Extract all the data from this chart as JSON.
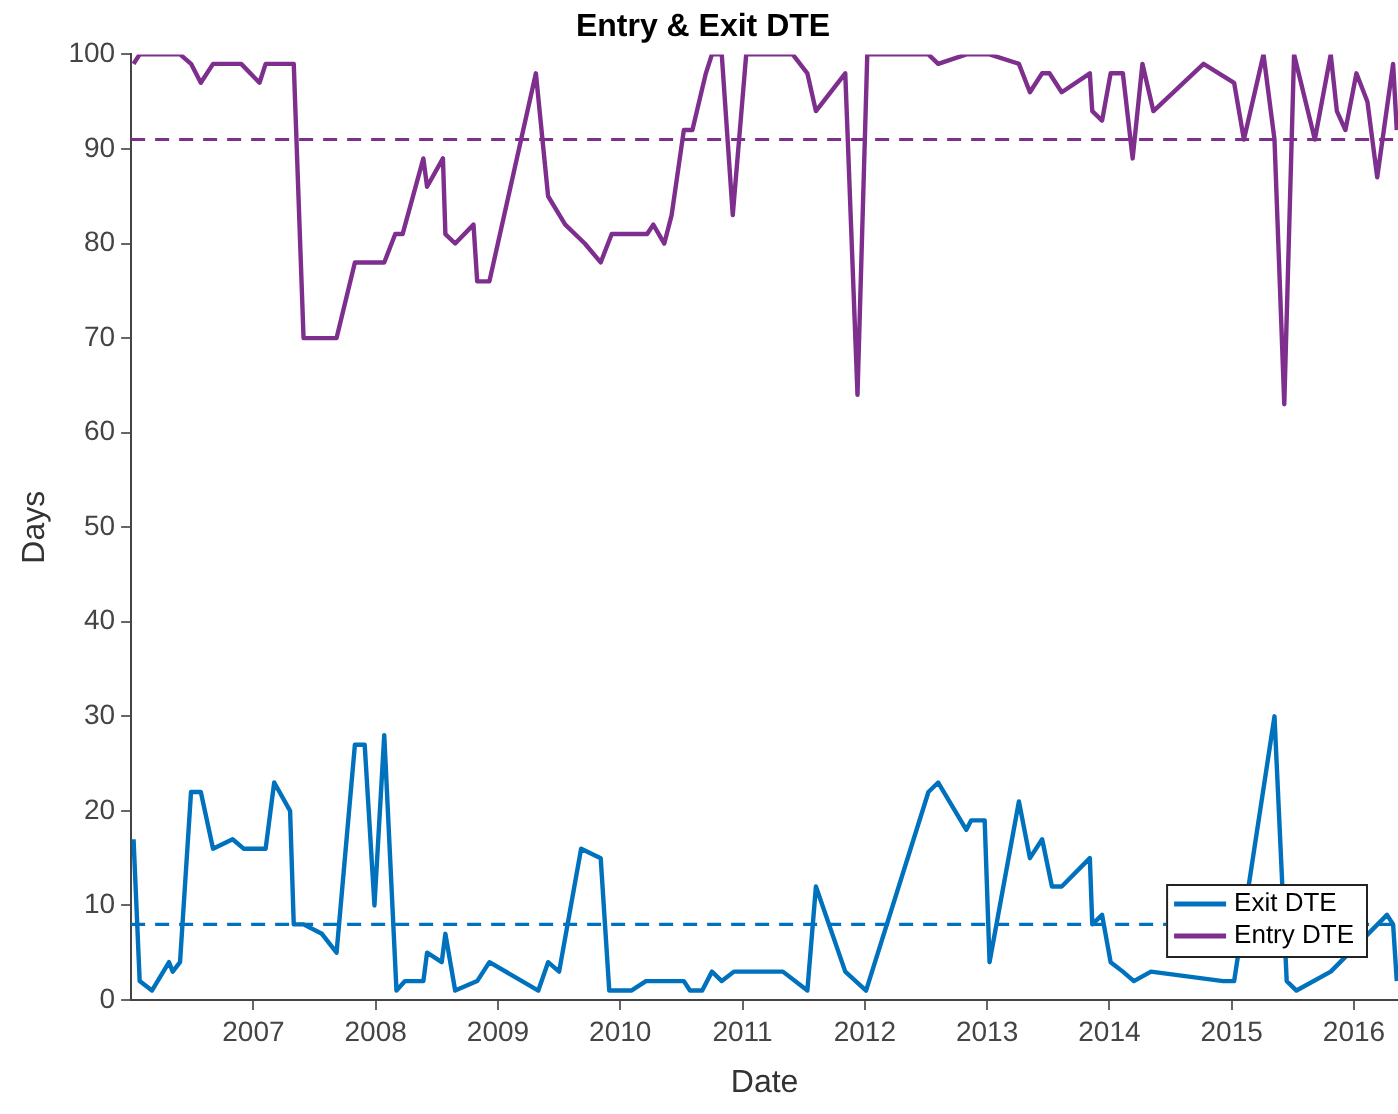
{
  "chart_data": {
    "type": "line",
    "title": "Entry & Exit DTE",
    "xlabel": "Date",
    "ylabel": "Days",
    "xlim": [
      2006.0,
      2016.36
    ],
    "xticks": [
      2007,
      2008,
      2009,
      2010,
      2011,
      2012,
      2013,
      2014,
      2015,
      2016
    ],
    "ylim": [
      0,
      100
    ],
    "yticks": [
      0,
      10,
      20,
      30,
      40,
      50,
      60,
      70,
      80,
      90,
      100
    ],
    "grid": false,
    "legend": "bottom right",
    "marker": "none",
    "line_style": "solid",
    "series": [
      {
        "name": "Exit DTE",
        "color": "#0072bd",
        "x": [
          2006.02,
          2006.07,
          2006.17,
          2006.31,
          2006.34,
          2006.4,
          2006.49,
          2006.57,
          2006.67,
          2006.83,
          2006.92,
          2007.1,
          2007.17,
          2007.3,
          2007.33,
          2007.41,
          2007.56,
          2007.68,
          2007.83,
          2007.91,
          2007.99,
          2008.07,
          2008.17,
          2008.24,
          2008.39,
          2008.42,
          2008.54,
          2008.57,
          2008.65,
          2008.83,
          2008.93,
          2009.33,
          2009.41,
          2009.5,
          2009.68,
          2009.84,
          2009.91,
          2010.09,
          2010.21,
          2010.52,
          2010.57,
          2010.67,
          2010.75,
          2010.83,
          2010.93,
          2011.25,
          2011.33,
          2011.53,
          2011.6,
          2011.84,
          2012.01,
          2012.52,
          2012.6,
          2012.83,
          2012.87,
          2012.98,
          2013.02,
          2013.26,
          2013.35,
          2013.45,
          2013.53,
          2013.61,
          2013.84,
          2013.86,
          2013.94,
          2014.01,
          2014.11,
          2014.2,
          2014.34,
          2014.93,
          2015.02,
          2015.35,
          2015.45,
          2015.53,
          2015.81,
          2016.27,
          2016.32,
          2016.35
        ],
        "values": [
          17,
          2,
          1,
          4,
          3,
          4,
          22,
          22,
          16,
          17,
          16,
          16,
          23,
          20,
          8,
          8,
          7,
          5,
          27,
          27,
          10,
          28,
          1,
          2,
          2,
          5,
          4,
          7,
          1,
          2,
          4,
          1,
          4,
          3,
          16,
          15,
          1,
          1,
          2,
          2,
          1,
          1,
          3,
          2,
          3,
          3,
          3,
          1,
          12,
          3,
          1,
          22,
          23,
          18,
          19,
          19,
          4,
          21,
          15,
          17,
          12,
          12,
          15,
          8,
          9,
          4,
          3,
          2,
          3,
          2,
          2,
          30,
          2,
          1,
          3,
          9,
          8,
          2
        ]
      },
      {
        "name": "Entry DTE",
        "color": "#7e2f8e",
        "x": [
          2006.02,
          2006.07,
          2006.4,
          2006.49,
          2006.57,
          2006.67,
          2006.9,
          2007.05,
          2007.1,
          2007.33,
          2007.41,
          2007.68,
          2007.83,
          2008.07,
          2008.16,
          2008.22,
          2008.39,
          2008.42,
          2008.55,
          2008.57,
          2008.65,
          2008.8,
          2008.83,
          2008.93,
          2009.31,
          2009.41,
          2009.55,
          2009.71,
          2009.84,
          2009.93,
          2010.22,
          2010.27,
          2010.36,
          2010.42,
          2010.52,
          2010.59,
          2010.7,
          2010.75,
          2010.83,
          2010.92,
          2011.03,
          2011.41,
          2011.53,
          2011.6,
          2011.84,
          2011.94,
          2012.02,
          2012.52,
          2012.6,
          2012.83,
          2013.02,
          2013.26,
          2013.35,
          2013.45,
          2013.51,
          2013.61,
          2013.84,
          2013.86,
          2013.94,
          2014.01,
          2014.11,
          2014.19,
          2014.27,
          2014.36,
          2014.77,
          2015.02,
          2015.1,
          2015.26,
          2015.35,
          2015.43,
          2015.51,
          2015.68,
          2015.81,
          2015.86,
          2015.93,
          2016.02,
          2016.11,
          2016.19,
          2016.32,
          2016.35
        ],
        "values": [
          99,
          100,
          100,
          99,
          97,
          99,
          99,
          97,
          99,
          99,
          70,
          70,
          78,
          78,
          81,
          81,
          89,
          86,
          89,
          81,
          80,
          82,
          76,
          76,
          98,
          85,
          82,
          80,
          78,
          81,
          81,
          82,
          80,
          83,
          92,
          92,
          98,
          100,
          100,
          83,
          100,
          100,
          98,
          94,
          98,
          64,
          100,
          100,
          99,
          100,
          100,
          99,
          96,
          98,
          98,
          96,
          98,
          94,
          93,
          98,
          98,
          89,
          99,
          94,
          99,
          97,
          91,
          100,
          91,
          63,
          100,
          91,
          100,
          94,
          92,
          98,
          95,
          87,
          99,
          92
        ]
      }
    ],
    "ref_lines": [
      {
        "axis": "y",
        "value": 8,
        "color": "#0072bd",
        "line_style": "dashed"
      },
      {
        "axis": "y",
        "value": 91,
        "color": "#7e2f8e",
        "line_style": "dashed"
      }
    ]
  }
}
